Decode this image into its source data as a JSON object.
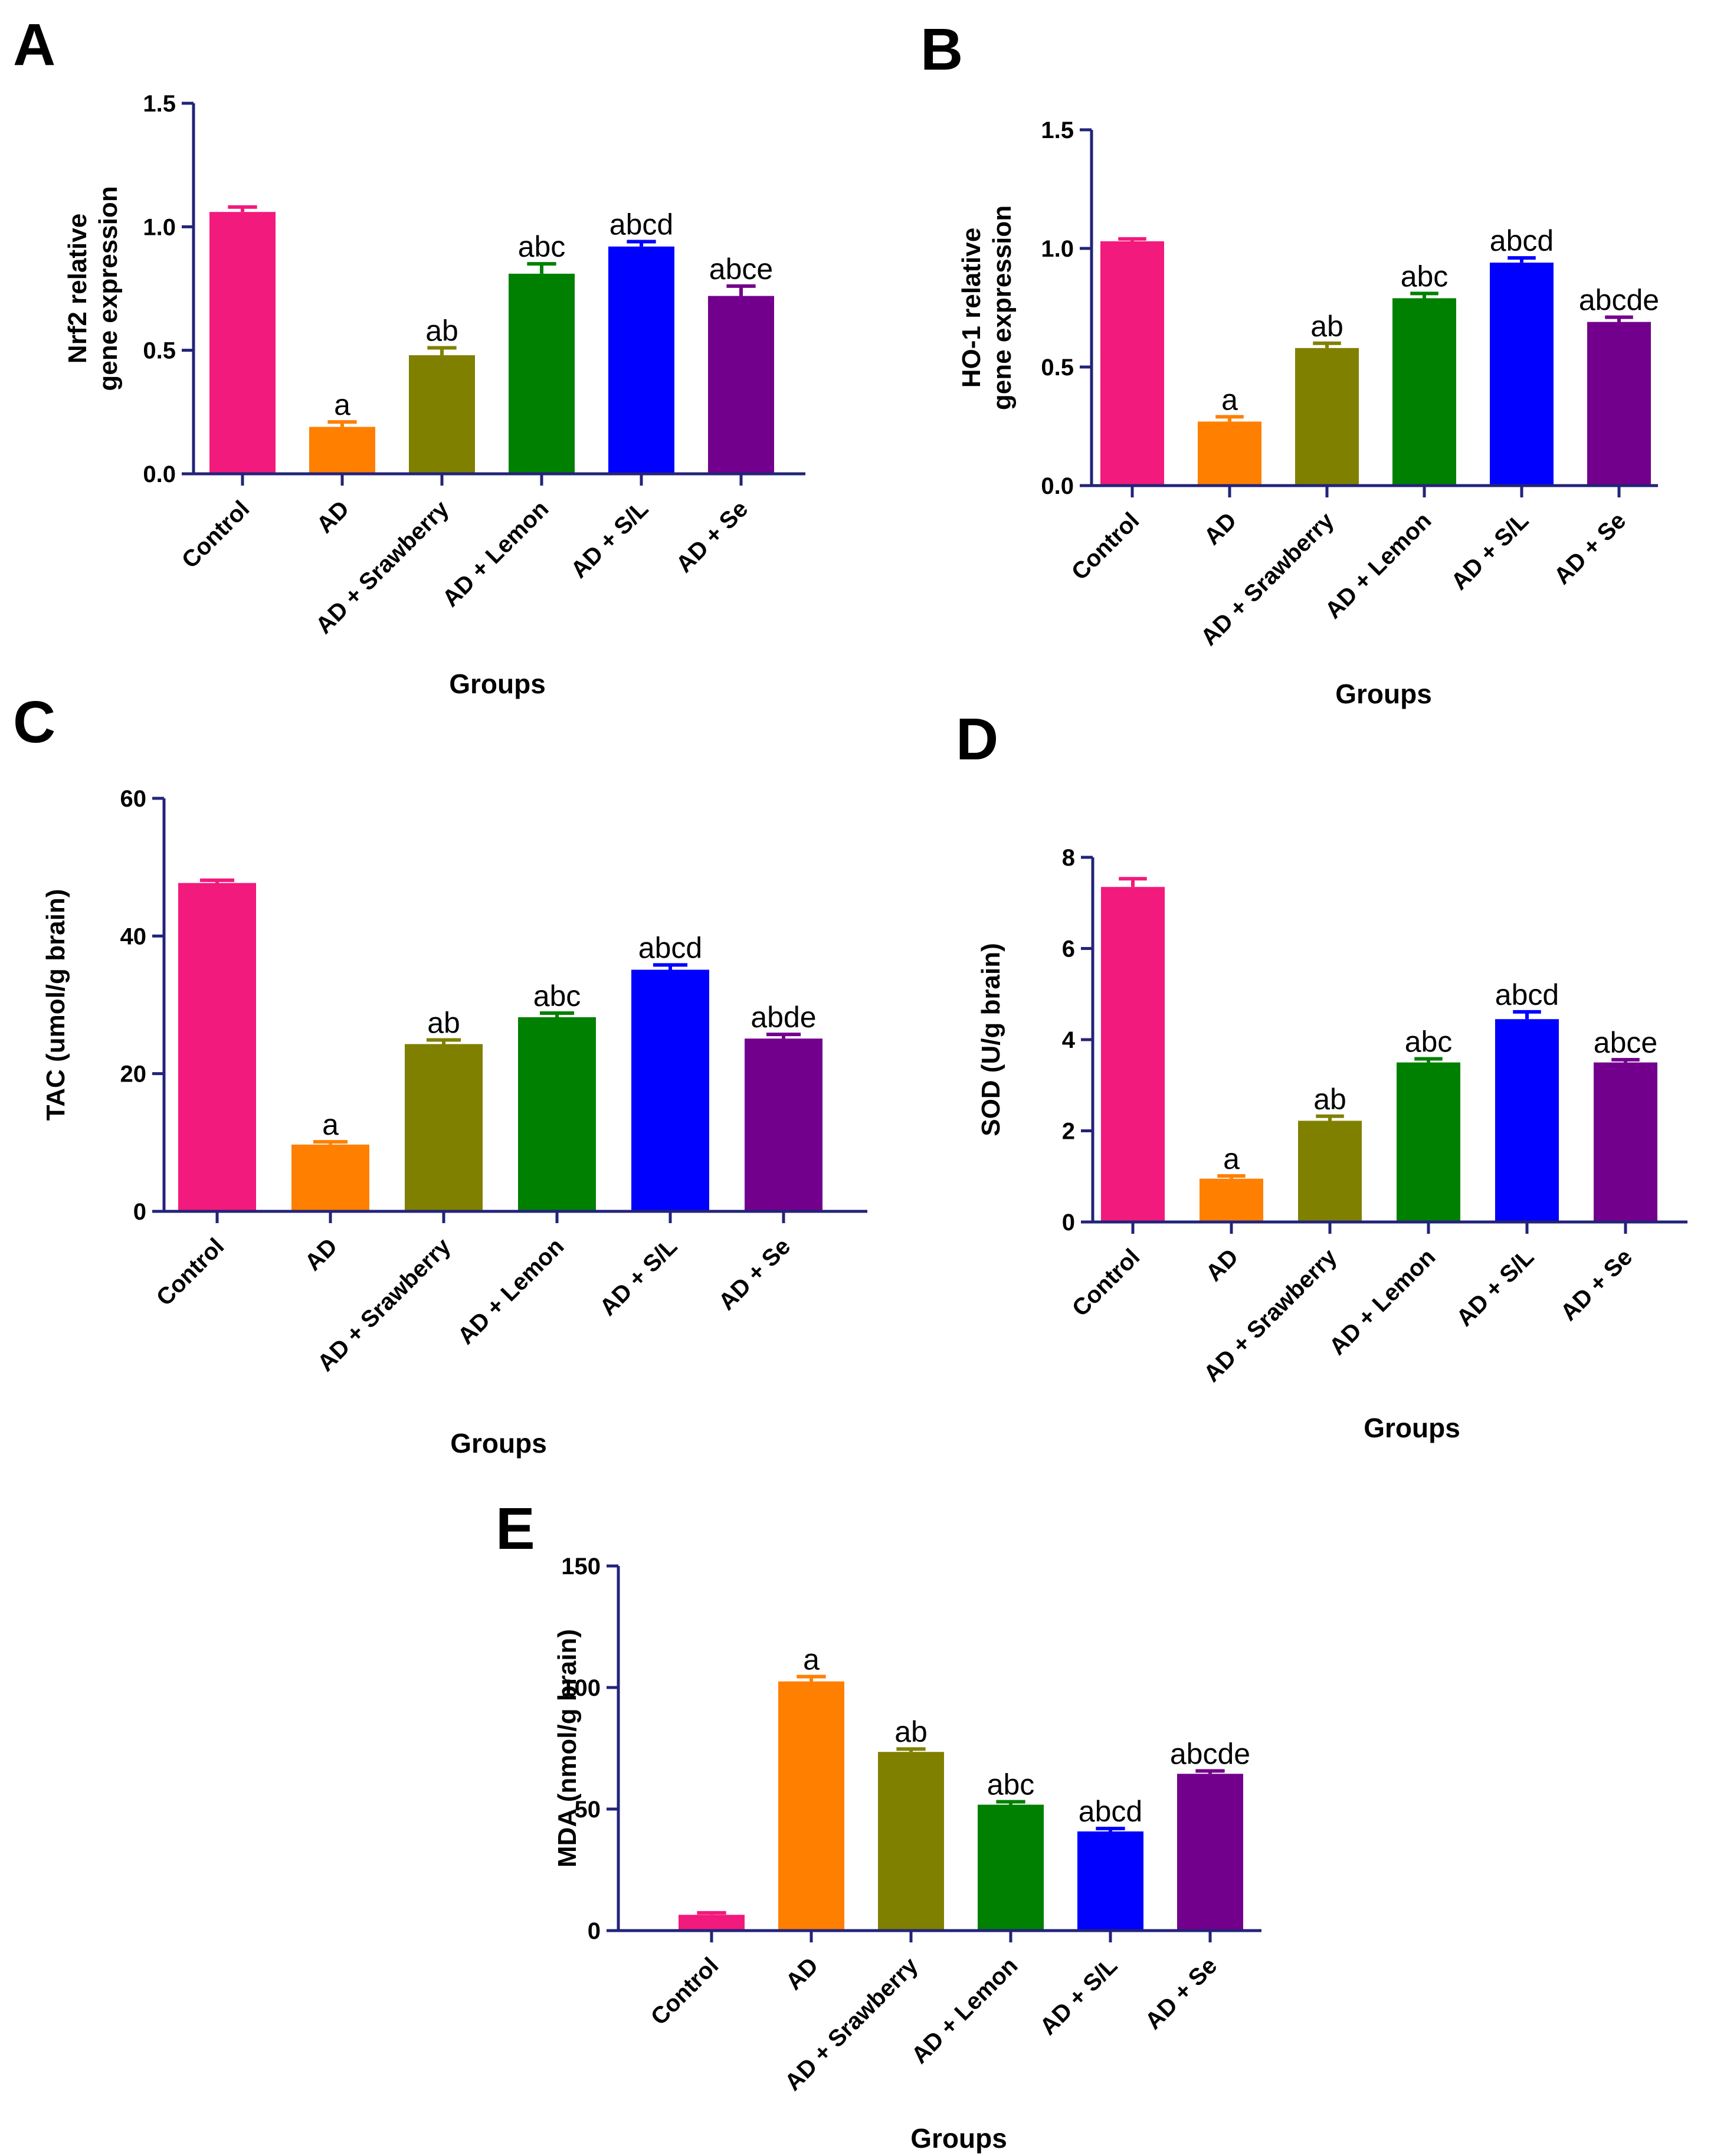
{
  "chart_data": [
    {
      "id": "A",
      "type": "bar",
      "panel_label": "A",
      "title": "",
      "xlabel": "Groups",
      "ylabel": [
        "Nrf2 relative",
        "gene expression"
      ],
      "ylim": [
        0,
        1.5
      ],
      "yticks": [
        "0.0",
        "0.5",
        "1.0",
        "1.5"
      ],
      "ytick_values": [
        0,
        0.5,
        1.0,
        1.5
      ],
      "categories": [
        "Control",
        "AD",
        "AD + Srawberry",
        "AD + Lemon",
        "AD + S/L",
        "AD + Se"
      ],
      "values": [
        1.06,
        0.19,
        0.48,
        0.81,
        0.92,
        0.72
      ],
      "errors": [
        0.02,
        0.02,
        0.03,
        0.04,
        0.02,
        0.04
      ],
      "significance": [
        "",
        "a",
        "ab",
        "abc",
        "abcd",
        "abce"
      ],
      "colors": [
        "#f21a7c",
        "#ff7f00",
        "#808000",
        "#008000",
        "#0000ff",
        "#73008c"
      ],
      "grid": false,
      "legend": "none"
    },
    {
      "id": "B",
      "type": "bar",
      "panel_label": "B",
      "title": "",
      "xlabel": "Groups",
      "ylabel": [
        "HO-1 relative",
        "gene expression"
      ],
      "ylim": [
        0,
        1.5
      ],
      "yticks": [
        "0.0",
        "0.5",
        "1.0",
        "1.5"
      ],
      "ytick_values": [
        0,
        0.5,
        1.0,
        1.5
      ],
      "categories": [
        "Control",
        "AD",
        "AD + Srawberry",
        "AD + Lemon",
        "AD + S/L",
        "AD + Se"
      ],
      "values": [
        1.03,
        0.27,
        0.58,
        0.79,
        0.94,
        0.69
      ],
      "errors": [
        0.01,
        0.02,
        0.02,
        0.02,
        0.02,
        0.02
      ],
      "significance": [
        "",
        "a",
        "ab",
        "abc",
        "abcd",
        "abcde"
      ],
      "colors": [
        "#f21a7c",
        "#ff7f00",
        "#808000",
        "#008000",
        "#0000ff",
        "#73008c"
      ],
      "grid": false,
      "legend": "none"
    },
    {
      "id": "C",
      "type": "bar",
      "panel_label": "C",
      "title": "",
      "xlabel": "Groups",
      "ylabel": [
        "TAC (umol/g brain)"
      ],
      "ylim": [
        0,
        60
      ],
      "yticks": [
        "0",
        "20",
        "40",
        "60"
      ],
      "ytick_values": [
        0,
        20,
        40,
        60
      ],
      "categories": [
        "Control",
        "AD",
        "AD + Srawberry",
        "AD + Lemon",
        "AD + S/L",
        "AD + Se"
      ],
      "values": [
        47.7,
        9.7,
        24.3,
        28.2,
        35.1,
        25.1
      ],
      "errors": [
        0.4,
        0.4,
        0.6,
        0.6,
        0.7,
        0.6
      ],
      "significance": [
        "",
        "a",
        "ab",
        "abc",
        "abcd",
        "abde"
      ],
      "colors": [
        "#f21a7c",
        "#ff7f00",
        "#808000",
        "#008000",
        "#0000ff",
        "#73008c"
      ],
      "grid": false,
      "legend": "none"
    },
    {
      "id": "D",
      "type": "bar",
      "panel_label": "D",
      "title": "",
      "xlabel": "Groups",
      "ylabel": [
        "SOD (U/g brain)"
      ],
      "ylim": [
        0,
        8
      ],
      "yticks": [
        "0",
        "2",
        "4",
        "6",
        "8"
      ],
      "ytick_values": [
        0,
        2,
        4,
        6,
        8
      ],
      "categories": [
        "Control",
        "AD",
        "AD + Srawberry",
        "AD + Lemon",
        "AD + S/L",
        "AD + Se"
      ],
      "values": [
        7.35,
        0.95,
        2.22,
        3.5,
        4.45,
        3.5
      ],
      "errors": [
        0.18,
        0.06,
        0.1,
        0.08,
        0.16,
        0.06
      ],
      "significance": [
        "",
        "a",
        "ab",
        "abc",
        "abcd",
        "abce"
      ],
      "colors": [
        "#f21a7c",
        "#ff7f00",
        "#808000",
        "#008000",
        "#0000ff",
        "#73008c"
      ],
      "grid": false,
      "legend": "none"
    },
    {
      "id": "E",
      "type": "bar",
      "panel_label": "E",
      "title": "",
      "xlabel": "Groups",
      "ylabel": [
        "MDA (nmol/g brain)"
      ],
      "ylim": [
        0,
        150
      ],
      "yticks": [
        "0",
        "50",
        "100",
        "150"
      ],
      "ytick_values": [
        0,
        50,
        100,
        150
      ],
      "categories": [
        "Control",
        "AD",
        "AD + Srawberry",
        "AD + Lemon",
        "AD + S/L",
        "AD + Se"
      ],
      "values": [
        6.5,
        102.5,
        73.5,
        51.8,
        40.8,
        64.5
      ],
      "errors": [
        0.8,
        2.0,
        1.2,
        1.2,
        1.2,
        1.2
      ],
      "significance": [
        "",
        "a",
        "ab",
        "abc",
        "abcd",
        "abcde"
      ],
      "colors": [
        "#f21a7c",
        "#ff7f00",
        "#808000",
        "#008000",
        "#0000ff",
        "#73008c"
      ],
      "grid": false,
      "legend": "none"
    }
  ]
}
